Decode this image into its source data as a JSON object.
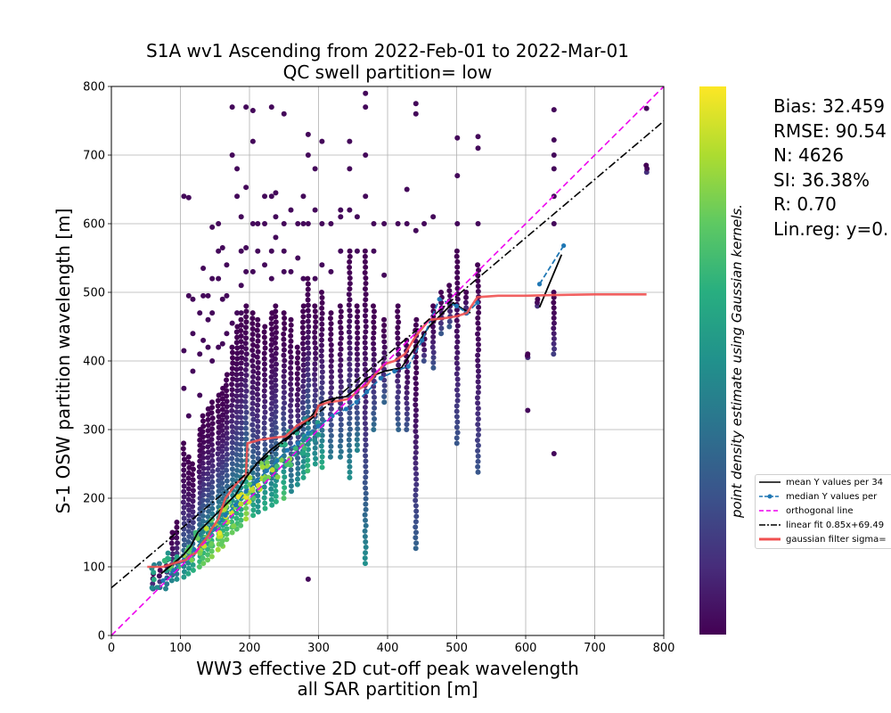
{
  "chart_data": {
    "type": "scatter",
    "title": "S1A wv1 Ascending from 2022-Feb-01 to 2022-Mar-01",
    "subtitle": "QC swell partition= low",
    "xlabel_line1": "WW3 effective 2D cut-off peak wavelength",
    "xlabel_line2": "all SAR partition [m]",
    "ylabel": "S-1 OSW partition wavelength [m]",
    "colorbar_label": "point density estimate using Gaussian kernels.",
    "colormap": "viridis",
    "xlim": [
      0,
      800
    ],
    "ylim": [
      0,
      800
    ],
    "x_ticks": [
      0,
      100,
      200,
      300,
      400,
      500,
      600,
      700,
      800
    ],
    "y_ticks": [
      0,
      100,
      200,
      300,
      400,
      500,
      600,
      700,
      800
    ],
    "grid": true,
    "legend_placement": "lower-right outside axes",
    "stats": {
      "bias": "Bias: 32.459",
      "rmse": "RMSE: 90.54",
      "n": "N: 4626",
      "si": "SI: 36.38%",
      "r": "R: 0.70",
      "linreg": "Lin.reg: y=0."
    },
    "legend": [
      {
        "label": "mean Y values per 34",
        "color": "#000000",
        "style": "solid"
      },
      {
        "label": "median Y values per",
        "color": "#1f77b4",
        "style": "dashed-marker"
      },
      {
        "label": "orthogonal line",
        "color": "#ee00ee",
        "style": "dashed"
      },
      {
        "label": "linear fit 0.85x+69.49",
        "color": "#000000",
        "style": "dashdot"
      },
      {
        "label": "gaussian filter sigma=",
        "color": "#f05050",
        "style": "thick"
      }
    ],
    "scatter_columns": [
      {
        "x": 60,
        "ymin": 68,
        "ymax": 90,
        "d": 0.3
      },
      {
        "x": 70,
        "ymin": 70,
        "ymax": 95,
        "d": 0.4
      },
      {
        "x": 80,
        "ymin": 75,
        "ymax": 110,
        "d": 0.45
      },
      {
        "x": 88,
        "ymin": 80,
        "ymax": 150,
        "d": 0.5
      },
      {
        "x": 95,
        "ymin": 82,
        "ymax": 165,
        "d": 0.55
      },
      {
        "x": 105,
        "ymin": 85,
        "ymax": 280,
        "d": 0.6,
        "extra": [
          360,
          415,
          640
        ]
      },
      {
        "x": 112,
        "ymin": 90,
        "ymax": 260,
        "d": 0.65,
        "extra": [
          320,
          495,
          638
        ]
      },
      {
        "x": 118,
        "ymin": 95,
        "ymax": 250,
        "d": 0.7,
        "extra": [
          385,
          440,
          490
        ]
      },
      {
        "x": 128,
        "ymin": 100,
        "ymax": 300,
        "d": 0.8,
        "extra": [
          350,
          410,
          470
        ]
      },
      {
        "x": 133,
        "ymin": 105,
        "ymax": 320,
        "d": 0.85,
        "extra": [
          430,
          495,
          535
        ]
      },
      {
        "x": 140,
        "ymin": 110,
        "ymax": 330,
        "d": 0.85,
        "extra": [
          420,
          460,
          495
        ]
      },
      {
        "x": 146,
        "ymin": 115,
        "ymax": 340,
        "d": 0.9,
        "extra": [
          400,
          470,
          520,
          595
        ]
      },
      {
        "x": 155,
        "ymin": 125,
        "ymax": 350,
        "d": 0.95,
        "extra": [
          420,
          520,
          560,
          600
        ]
      },
      {
        "x": 161,
        "ymin": 130,
        "ymax": 360,
        "d": 0.9,
        "extra": [
          425,
          490,
          565
        ]
      },
      {
        "x": 167,
        "ymin": 140,
        "ymax": 380,
        "d": 0.85,
        "extra": [
          440,
          495,
          540
        ]
      },
      {
        "x": 175,
        "ymin": 150,
        "ymax": 420,
        "d": 0.85,
        "extra": [
          455,
          700,
          770
        ]
      },
      {
        "x": 182,
        "ymin": 155,
        "ymax": 450,
        "d": 0.8,
        "extra": [
          470,
          680,
          640
        ]
      },
      {
        "x": 188,
        "ymin": 160,
        "ymax": 460,
        "d": 0.8,
        "extra": [
          470,
          510,
          560,
          610
        ]
      },
      {
        "x": 195,
        "ymin": 170,
        "ymax": 480,
        "d": 0.95,
        "extra": [
          530,
          565,
          653,
          770
        ]
      },
      {
        "x": 205,
        "ymin": 175,
        "ymax": 470,
        "d": 0.7,
        "extra": [
          530,
          600,
          720,
          765
        ]
      },
      {
        "x": 212,
        "ymin": 180,
        "ymax": 460,
        "d": 0.6,
        "extra": [
          560,
          600
        ]
      },
      {
        "x": 222,
        "ymin": 185,
        "ymax": 450,
        "d": 0.7,
        "extra": [
          540,
          600,
          640
        ]
      },
      {
        "x": 232,
        "ymin": 190,
        "ymax": 470,
        "d": 0.65,
        "extra": [
          520,
          560,
          640,
          770
        ]
      },
      {
        "x": 238,
        "ymin": 195,
        "ymax": 480,
        "d": 0.7,
        "extra": [
          580,
          610,
          645
        ]
      },
      {
        "x": 250,
        "ymin": 200,
        "ymax": 470,
        "d": 0.8,
        "extra": [
          530,
          560,
          600,
          760
        ]
      },
      {
        "x": 260,
        "ymin": 210,
        "ymax": 460,
        "d": 0.5,
        "extra": [
          530,
          620
        ]
      },
      {
        "x": 270,
        "ymin": 220,
        "ymax": 420,
        "d": 0.55,
        "extra": [
          550,
          600
        ]
      },
      {
        "x": 278,
        "ymin": 230,
        "ymax": 480,
        "d": 0.65,
        "extra": [
          520,
          600,
          640
        ]
      },
      {
        "x": 285,
        "ymin": 240,
        "ymax": 520,
        "d": 0.75,
        "extra": [
          600,
          700,
          730,
          82
        ]
      },
      {
        "x": 295,
        "ymin": 250,
        "ymax": 480,
        "d": 0.6,
        "extra": [
          520,
          620,
          680
        ]
      },
      {
        "x": 305,
        "ymin": 245,
        "ymax": 500,
        "d": 0.7,
        "extra": [
          540,
          600,
          720
        ]
      },
      {
        "x": 318,
        "ymin": 260,
        "ymax": 470,
        "d": 0.45,
        "extra": [
          530,
          600
        ]
      },
      {
        "x": 332,
        "ymin": 260,
        "ymax": 480,
        "d": 0.45,
        "extra": [
          560,
          610,
          620
        ]
      },
      {
        "x": 345,
        "ymin": 230,
        "ymax": 560,
        "d": 0.55,
        "extra": [
          620,
          680,
          720
        ]
      },
      {
        "x": 356,
        "ymin": 270,
        "ymax": 480,
        "d": 0.5,
        "extra": [
          560,
          610
        ]
      },
      {
        "x": 368,
        "ymin": 105,
        "ymax": 560,
        "d": 0.55,
        "extra": [
          640,
          700,
          770,
          790
        ]
      },
      {
        "x": 380,
        "ymin": 300,
        "ymax": 480,
        "d": 0.4,
        "extra": [
          560,
          600
        ]
      },
      {
        "x": 395,
        "ymin": 340,
        "ymax": 460,
        "d": 0.35,
        "extra": [
          525,
          600
        ]
      },
      {
        "x": 415,
        "ymin": 300,
        "ymax": 480,
        "d": 0.35,
        "extra": [
          600
        ]
      },
      {
        "x": 428,
        "ymin": 300,
        "ymax": 430,
        "d": 0.3,
        "extra": [
          600,
          650
        ]
      },
      {
        "x": 441,
        "ymin": 127,
        "ymax": 460,
        "d": 0.35,
        "extra": [
          590,
          760,
          775
        ]
      },
      {
        "x": 453,
        "ymin": 400,
        "ymax": 440,
        "d": 0.25,
        "extra": [
          600
        ]
      },
      {
        "x": 466,
        "ymin": 390,
        "ymax": 480,
        "d": 0.3,
        "extra": [
          610
        ]
      },
      {
        "x": 478,
        "ymin": 440,
        "ymax": 500,
        "d": 0.3
      },
      {
        "x": 490,
        "ymin": 450,
        "ymax": 510,
        "d": 0.3
      },
      {
        "x": 501,
        "ymin": 280,
        "ymax": 560,
        "d": 0.3,
        "extra": [
          600,
          670,
          725
        ]
      },
      {
        "x": 514,
        "ymin": 470,
        "ymax": 500,
        "d": 0.25
      },
      {
        "x": 531,
        "ymin": 238,
        "ymax": 540,
        "d": 0.3,
        "extra": [
          600,
          710,
          727
        ]
      },
      {
        "x": 603,
        "ymin": 405,
        "ymax": 410,
        "d": 0.15,
        "extra": [
          328
        ]
      },
      {
        "x": 617,
        "ymin": 480,
        "ymax": 490,
        "d": 0.15
      },
      {
        "x": 641,
        "ymin": 410,
        "ymax": 500,
        "d": 0.2,
        "extra": [
          265,
          600,
          640,
          680,
          700,
          722,
          766
        ]
      },
      {
        "x": 775,
        "ymin": 675,
        "ymax": 685,
        "d": 0.15,
        "extra": [
          768
        ]
      }
    ],
    "density_blob": [
      {
        "x": 70,
        "y": 85
      },
      {
        "x": 90,
        "y": 100
      },
      {
        "x": 110,
        "y": 115
      },
      {
        "x": 130,
        "y": 130
      },
      {
        "x": 150,
        "y": 150
      },
      {
        "x": 170,
        "y": 175
      },
      {
        "x": 190,
        "y": 200
      },
      {
        "x": 210,
        "y": 220
      },
      {
        "x": 230,
        "y": 240
      },
      {
        "x": 250,
        "y": 260
      },
      {
        "x": 270,
        "y": 280
      },
      {
        "x": 290,
        "y": 300
      }
    ],
    "series": [
      {
        "name": "mean Y values per 34",
        "type": "line",
        "color": "#000000",
        "x": [
          72,
          90,
          105,
          115,
          125,
          140,
          160,
          180,
          195,
          210,
          230,
          250,
          270,
          290,
          305,
          320,
          340,
          355,
          370,
          395,
          420,
          440,
          460,
          480,
          495,
          510,
          520
        ],
        "y": [
          90,
          105,
          118,
          130,
          150,
          165,
          185,
          205,
          230,
          250,
          270,
          285,
          300,
          320,
          340,
          345,
          348,
          360,
          375,
          385,
          390,
          420,
          450,
          470,
          485,
          475,
          470
        ]
      },
      {
        "name": "mean Y values per 34 (tail)",
        "type": "line",
        "color": "#000000",
        "x": [
          620,
          652
        ],
        "y": [
          478,
          555
        ]
      },
      {
        "name": "median Y values per",
        "type": "line-marker",
        "color": "#1f77b4",
        "x": [
          75,
          90,
          105,
          120,
          135,
          150,
          165,
          180,
          195,
          210,
          225,
          240,
          255,
          270,
          285,
          300,
          320,
          340,
          355,
          370,
          390,
          410,
          430,
          450,
          475,
          500,
          515,
          530
        ],
        "y": [
          80,
          95,
          110,
          125,
          140,
          155,
          175,
          190,
          210,
          225,
          240,
          255,
          270,
          280,
          295,
          305,
          320,
          330,
          340,
          355,
          375,
          385,
          392,
          430,
          490,
          480,
          470,
          485
        ]
      },
      {
        "name": "median Y values per (tail)",
        "type": "line-marker",
        "color": "#1f77b4",
        "x": [
          620,
          655
        ],
        "y": [
          512,
          568
        ]
      },
      {
        "name": "gaussian filter sigma=",
        "type": "line",
        "color": "#f05050",
        "x": [
          52,
          75,
          90,
          108,
          112,
          122,
          128,
          140,
          145,
          155,
          165,
          180,
          195,
          197,
          215,
          235,
          252,
          268,
          285,
          295,
          300,
          315,
          330,
          345,
          360,
          370,
          380,
          395,
          410,
          425,
          440,
          460,
          480,
          500,
          515,
          530,
          560,
          600,
          640,
          700,
          775
        ],
        "y": [
          100,
          100,
          105,
          110,
          115,
          120,
          130,
          145,
          155,
          170,
          200,
          220,
          235,
          280,
          285,
          288,
          290,
          305,
          315,
          320,
          335,
          340,
          342,
          345,
          360,
          365,
          378,
          395,
          400,
          410,
          435,
          460,
          462,
          465,
          470,
          493,
          495,
          495,
          496,
          497,
          497
        ]
      },
      {
        "name": "orthogonal line",
        "type": "line",
        "color": "#ee00ee",
        "x": [
          0,
          800
        ],
        "y": [
          0,
          800
        ]
      },
      {
        "name": "linear fit 0.85x+69.49",
        "type": "line",
        "color": "#000000",
        "x": [
          0,
          800
        ],
        "y": [
          69.49,
          749.49
        ]
      }
    ]
  }
}
